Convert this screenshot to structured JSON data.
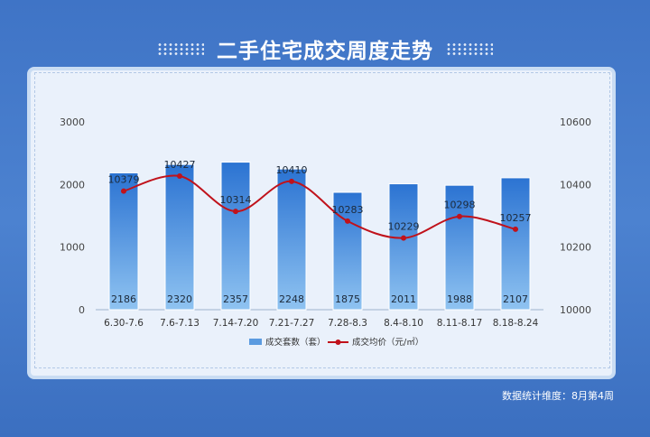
{
  "page": {
    "title": "二手住宅成交周度走势",
    "footnote": "数据统计维度：8月第4周"
  },
  "chart_data": {
    "type": "bar",
    "categories": [
      "6.30-7.6",
      "7.6-7.13",
      "7.14-7.20",
      "7.21-7.27",
      "7.28-8.3",
      "8.4-8.10",
      "8.11-8.17",
      "8.18-8.24"
    ],
    "series": [
      {
        "name": "成交套数（套）",
        "type": "bar",
        "axis": "left",
        "values": [
          2186,
          2320,
          2357,
          2248,
          1875,
          2011,
          1988,
          2107
        ]
      },
      {
        "name": "成交均价（元/㎡）",
        "type": "line",
        "axis": "right",
        "values": [
          10379,
          10427,
          10314,
          10410,
          10283,
          10229,
          10298,
          10257
        ]
      }
    ],
    "y_left": {
      "range": [
        0,
        3000
      ],
      "ticks": [
        "0",
        "1000",
        "2000",
        "3000"
      ]
    },
    "y_right": {
      "range": [
        10000,
        10600
      ],
      "ticks": [
        "10000",
        "10200",
        "10400",
        "10600"
      ]
    },
    "legend_position": "bottom-center",
    "colors": {
      "bar_top": "#2b73d2",
      "bar_bottom": "#8fc3f1",
      "line": "#c0121b",
      "background": "#4478c8"
    },
    "grid": false
  }
}
